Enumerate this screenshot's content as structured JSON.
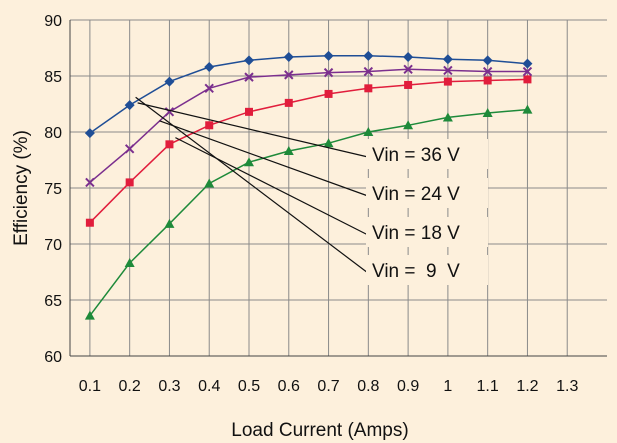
{
  "chart_data": {
    "type": "line",
    "title": "",
    "xlabel": "Load Current (Amps)",
    "ylabel": "Efficiency (%)",
    "xlim": [
      0.05,
      1.4
    ],
    "ylim": [
      60,
      90
    ],
    "x_ticks": [
      "0.1",
      "0.2",
      "0.3",
      "0.4",
      "0.5",
      "0.6",
      "0.7",
      "0.8",
      "0.9",
      "1",
      "1.1",
      "1.2",
      "1.3"
    ],
    "y_ticks": [
      "60",
      "65",
      "70",
      "75",
      "80",
      "85",
      "90"
    ],
    "grid": true,
    "legend": "none",
    "x": [
      0.1,
      0.2,
      0.3,
      0.4,
      0.5,
      0.6,
      0.7,
      0.8,
      0.9,
      1.0,
      1.1,
      1.2
    ],
    "series": [
      {
        "label": "Vin = 36 V",
        "color": "#1f4e96",
        "marker": "diamond",
        "values": [
          79.9,
          82.4,
          84.5,
          85.8,
          86.4,
          86.7,
          86.8,
          86.8,
          86.7,
          86.5,
          86.4,
          86.1
        ]
      },
      {
        "label": "Vin = 24 V",
        "color": "#7b2f8e",
        "marker": "x",
        "values": [
          75.5,
          78.5,
          81.8,
          83.9,
          84.9,
          85.1,
          85.3,
          85.4,
          85.6,
          85.5,
          85.4,
          85.4
        ]
      },
      {
        "label": "Vin = 18 V",
        "color": "#e11d3c",
        "marker": "square",
        "values": [
          71.9,
          75.5,
          78.9,
          80.6,
          81.8,
          82.6,
          83.4,
          83.9,
          84.2,
          84.5,
          84.6,
          84.7
        ]
      },
      {
        "label": "Vin =  9  V",
        "color": "#1e8a3a",
        "marker": "triangle",
        "values": [
          63.6,
          68.3,
          71.8,
          75.4,
          77.3,
          78.3,
          79.0,
          80.0,
          80.6,
          81.3,
          81.7,
          82.0
        ]
      }
    ]
  }
}
